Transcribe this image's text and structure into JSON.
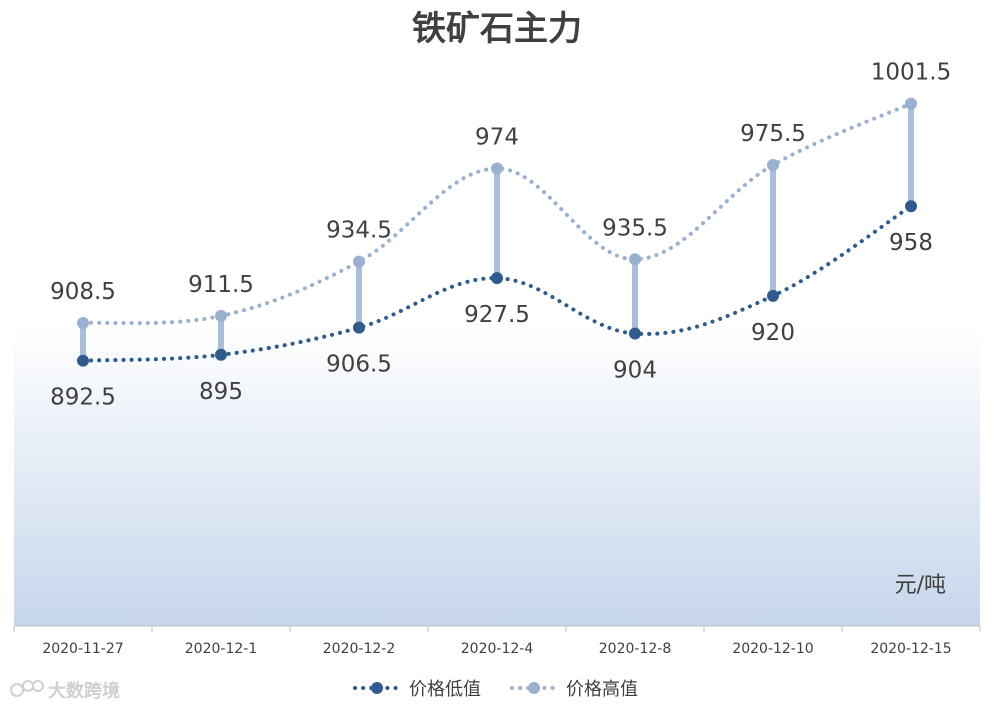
{
  "chart_data": {
    "type": "line",
    "title": "铁矿石主力",
    "unit_label": "元/吨",
    "categories": [
      "2020-11-27",
      "2020-12-1",
      "2020-12-2",
      "2020-12-4",
      "2020-12-8",
      "2020-12-10",
      "2020-12-15"
    ],
    "series": [
      {
        "name": "价格低值",
        "values": [
          892.5,
          895,
          906.5,
          927.5,
          904,
          920,
          958
        ],
        "labels": [
          "892.5",
          "895",
          "906.5",
          "927.5",
          "904",
          "920",
          "958"
        ],
        "color": "#2f5b8f"
      },
      {
        "name": "价格高值",
        "values": [
          908.5,
          911.5,
          934.5,
          974,
          935.5,
          975.5,
          1001.5
        ],
        "labels": [
          "908.5",
          "911.5",
          "934.5",
          "974",
          "935.5",
          "975.5",
          "1001.5"
        ],
        "color": "#9ab0cf"
      }
    ],
    "y_range": [
      780,
      1020
    ],
    "grid": false,
    "legend_position": "bottom",
    "high_low_lines": true,
    "plot_fill_color": "#c6d6ec"
  },
  "watermark": "大数跨境"
}
